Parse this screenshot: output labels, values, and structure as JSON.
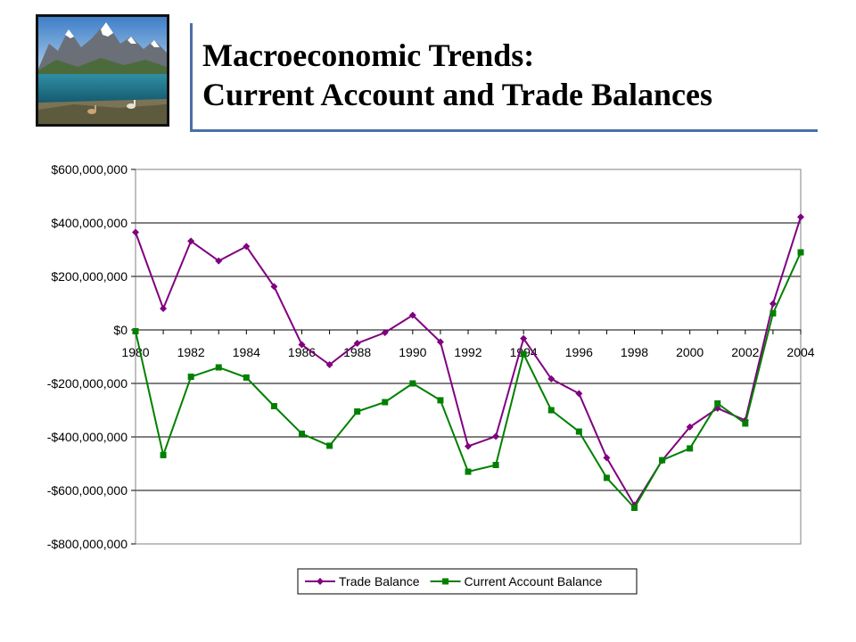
{
  "slide": {
    "title_line1": "Macroeconomic Trends:",
    "title_line2": "Current Account and Trade Balances"
  },
  "chart_data": {
    "type": "line",
    "title": "",
    "xlabel": "",
    "ylabel": "",
    "x": [
      1980,
      1981,
      1982,
      1983,
      1984,
      1985,
      1986,
      1987,
      1988,
      1989,
      1990,
      1991,
      1992,
      1993,
      1994,
      1995,
      1996,
      1997,
      1998,
      1999,
      2000,
      2001,
      2002,
      2003,
      2004
    ],
    "xticks": [
      "1980",
      "1982",
      "1984",
      "1986",
      "1988",
      "1990",
      "1992",
      "1994",
      "1996",
      "1998",
      "2000",
      "2002",
      "2004"
    ],
    "xlim": [
      1980,
      2004
    ],
    "ylim": [
      -800000000,
      600000000
    ],
    "yticks": [
      {
        "value": 600000000,
        "label": "$600,000,000"
      },
      {
        "value": 400000000,
        "label": "$400,000,000"
      },
      {
        "value": 200000000,
        "label": "$200,000,000"
      },
      {
        "value": 0,
        "label": "$0"
      },
      {
        "value": -200000000,
        "label": "-$200,000,000"
      },
      {
        "value": -400000000,
        "label": "-$400,000,000"
      },
      {
        "value": -600000000,
        "label": "-$600,000,000"
      },
      {
        "value": -800000000,
        "label": "-$800,000,000"
      }
    ],
    "grid": true,
    "legend_position": "bottom",
    "series": [
      {
        "name": "Trade Balance",
        "color": "#800080",
        "marker": "diamond",
        "values": [
          365000000,
          80000000,
          332000000,
          258000000,
          312000000,
          162000000,
          -55000000,
          -130000000,
          -50000000,
          -10000000,
          55000000,
          -45000000,
          -435000000,
          -398000000,
          -32000000,
          -183000000,
          -238000000,
          -478000000,
          -655000000,
          -488000000,
          -363000000,
          -293000000,
          -338000000,
          98000000,
          422000000
        ]
      },
      {
        "name": "Current Account Balance",
        "color": "#008000",
        "marker": "square",
        "values": [
          -5000000,
          -468000000,
          -175000000,
          -140000000,
          -178000000,
          -285000000,
          -388000000,
          -433000000,
          -305000000,
          -270000000,
          -200000000,
          -263000000,
          -530000000,
          -505000000,
          -90000000,
          -300000000,
          -380000000,
          -553000000,
          -665000000,
          -487000000,
          -443000000,
          -275000000,
          -350000000,
          62000000,
          290000000
        ]
      }
    ]
  }
}
